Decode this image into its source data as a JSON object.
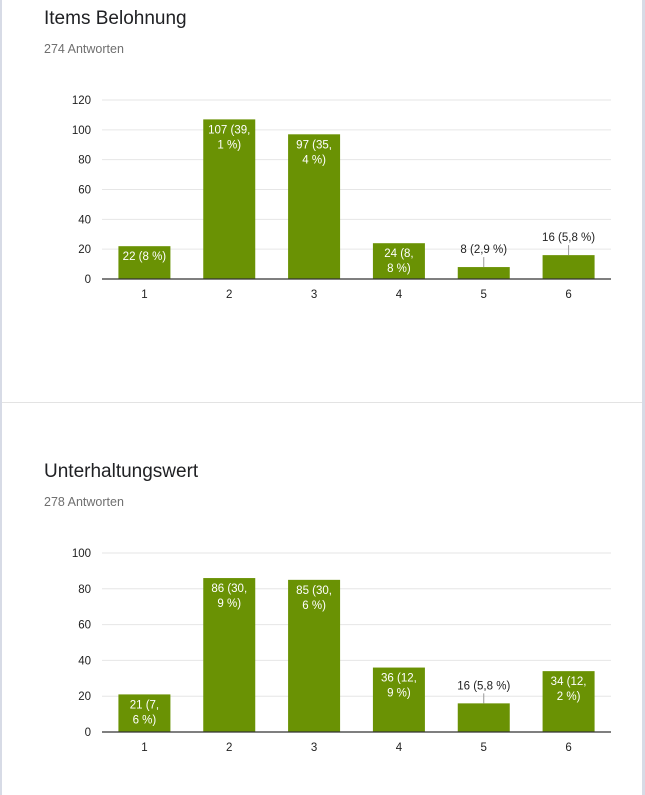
{
  "colors": {
    "bar": "#6a9204",
    "grid": "#e6e6e6",
    "axis": "#333333"
  },
  "charts": [
    {
      "title": "Items Belohnung",
      "subtitle": "274 Antworten"
    },
    {
      "title": "Unterhaltungswert",
      "subtitle": "278 Antworten"
    }
  ],
  "chart_data": [
    {
      "type": "bar",
      "title": "Items Belohnung",
      "categories": [
        "1",
        "2",
        "3",
        "4",
        "5",
        "6"
      ],
      "values": [
        22,
        107,
        97,
        24,
        8,
        16
      ],
      "data_labels": [
        [
          "22 (8 %)"
        ],
        [
          "107 (39,",
          "1 %)"
        ],
        [
          "97 (35,",
          "4 %)"
        ],
        [
          "24 (8,",
          "8 %)"
        ],
        [
          "8 (2,9 %)"
        ],
        [
          "16 (5,8 %)"
        ]
      ],
      "label_outside": [
        false,
        false,
        false,
        false,
        true,
        true
      ],
      "ylim": [
        0,
        120
      ],
      "yticks": [
        0,
        20,
        40,
        60,
        80,
        100,
        120
      ],
      "grid": true
    },
    {
      "type": "bar",
      "title": "Unterhaltungswert",
      "categories": [
        "1",
        "2",
        "3",
        "4",
        "5",
        "6"
      ],
      "values": [
        21,
        86,
        85,
        36,
        16,
        34
      ],
      "data_labels": [
        [
          "21 (7,",
          "6 %)"
        ],
        [
          "86 (30,",
          "9 %)"
        ],
        [
          "85 (30,",
          "6 %)"
        ],
        [
          "36 (12,",
          "9 %)"
        ],
        [
          "16 (5,8 %)"
        ],
        [
          "34 (12,",
          "2 %)"
        ]
      ],
      "label_outside": [
        false,
        false,
        false,
        false,
        true,
        false
      ],
      "ylim": [
        0,
        100
      ],
      "yticks": [
        0,
        20,
        40,
        60,
        80,
        100
      ],
      "grid": true
    }
  ]
}
